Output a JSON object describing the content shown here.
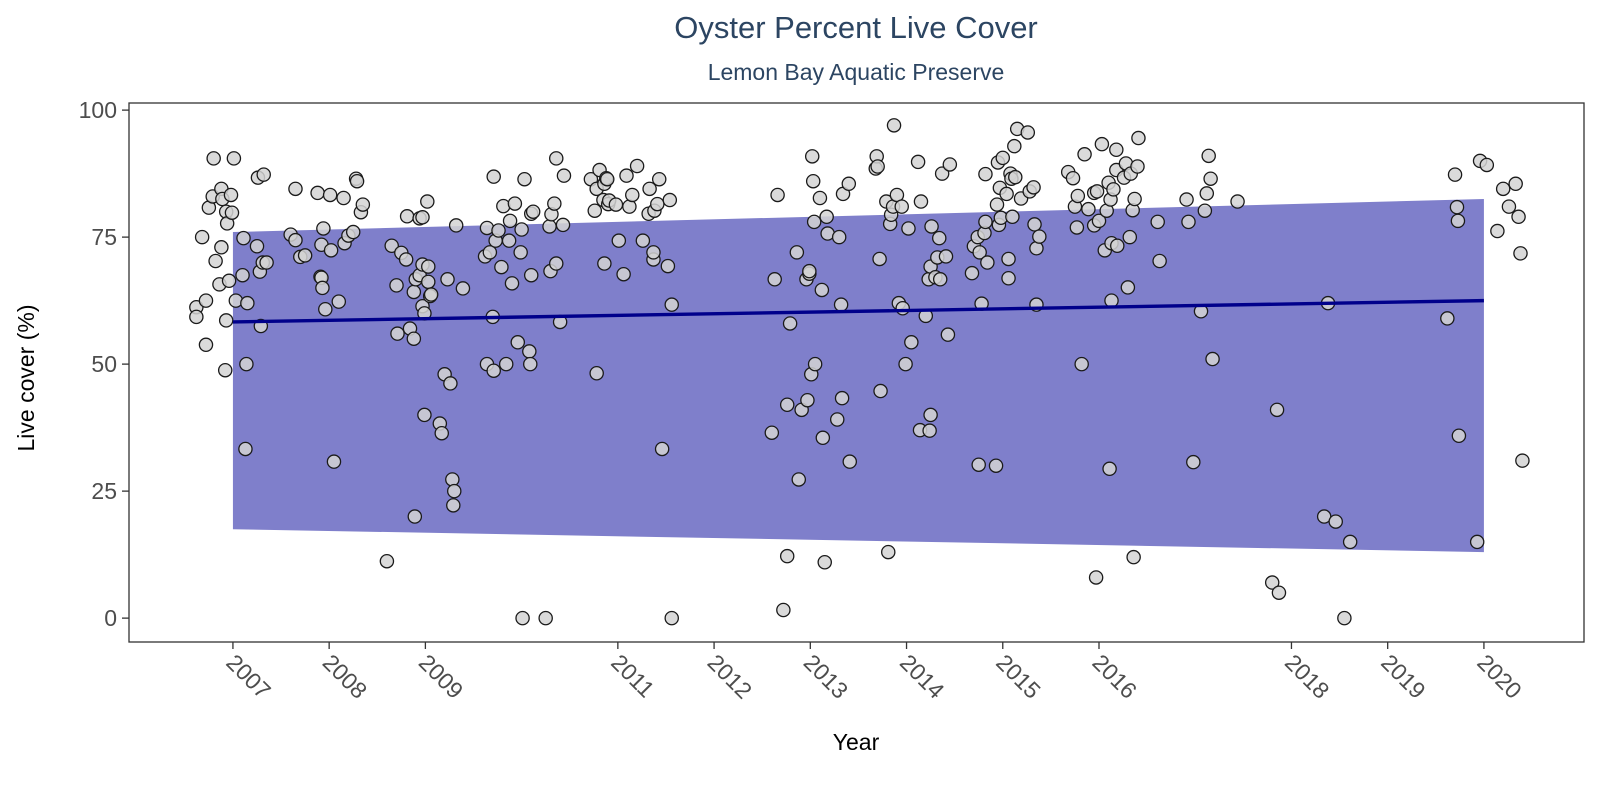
{
  "chart_data": {
    "type": "scatter",
    "title": "Oyster Percent Live Cover",
    "subtitle": "Lemon Bay Aquatic Preserve",
    "xlabel": "Year",
    "ylabel": "Live cover (%)",
    "xlim": [
      2005.92,
      2021.04
    ],
    "ylim": [
      -4.7,
      101.4
    ],
    "x_ticks": [
      2007,
      2008,
      2009,
      2011,
      2012,
      2013,
      2014,
      2015,
      2016,
      2018,
      2019,
      2020
    ],
    "y_ticks": [
      0,
      25,
      50,
      75,
      100
    ],
    "grid": false,
    "legend": "none",
    "colors": {
      "points_fill": "#d3d3d3",
      "points_stroke": "#1a1a1a",
      "trend_line": "#00008b",
      "ribbon": "#7f7fcb",
      "title": "#2c4562"
    },
    "trend": {
      "x": [
        2007,
        2020
      ],
      "y": [
        58.3,
        62.5
      ]
    },
    "ribbon": {
      "x": [
        2007,
        2020
      ],
      "lower": [
        17.5,
        13.0
      ],
      "upper": [
        76.0,
        82.5
      ]
    },
    "points": [
      [
        2006.62,
        61.2
      ],
      [
        2006.62,
        59.3
      ],
      [
        2006.68,
        75
      ],
      [
        2006.72,
        62.5
      ],
      [
        2006.72,
        53.8
      ],
      [
        2006.75,
        80.8
      ],
      [
        2006.79,
        83
      ],
      [
        2006.8,
        90.5
      ],
      [
        2006.82,
        70.3
      ],
      [
        2006.86,
        65.7
      ],
      [
        2006.88,
        73
      ],
      [
        2006.88,
        84.5
      ],
      [
        2006.89,
        82.5
      ],
      [
        2006.92,
        48.8
      ],
      [
        2006.93,
        58.6
      ],
      [
        2006.93,
        80
      ],
      [
        2006.94,
        77.7
      ],
      [
        2006.96,
        66.4
      ],
      [
        2006.98,
        83.3
      ],
      [
        2006.99,
        79.8
      ],
      [
        2007.01,
        90.5
      ],
      [
        2007.03,
        62.5
      ],
      [
        2007.1,
        67.5
      ],
      [
        2007.11,
        74.8
      ],
      [
        2007.13,
        33.3
      ],
      [
        2007.14,
        50
      ],
      [
        2007.15,
        62
      ],
      [
        2007.25,
        73.2
      ],
      [
        2007.26,
        86.7
      ],
      [
        2007.28,
        68.2
      ],
      [
        2007.29,
        57.5
      ],
      [
        2007.31,
        70
      ],
      [
        2007.32,
        87.3
      ],
      [
        2007.35,
        70
      ],
      [
        2007.6,
        75.5
      ],
      [
        2007.65,
        74.4
      ],
      [
        2007.65,
        84.5
      ],
      [
        2007.7,
        71.1
      ],
      [
        2007.75,
        71.4
      ],
      [
        2007.88,
        83.7
      ],
      [
        2007.91,
        67.2
      ],
      [
        2007.92,
        67
      ],
      [
        2007.92,
        73.5
      ],
      [
        2007.93,
        65
      ],
      [
        2007.94,
        76.7
      ],
      [
        2007.96,
        60.8
      ],
      [
        2008.01,
        83.3
      ],
      [
        2008.02,
        72.4
      ],
      [
        2008.05,
        30.8
      ],
      [
        2008.1,
        62.3
      ],
      [
        2008.15,
        82.7
      ],
      [
        2008.16,
        73.8
      ],
      [
        2008.2,
        75.3
      ],
      [
        2008.25,
        76
      ],
      [
        2008.28,
        86.5
      ],
      [
        2008.29,
        86
      ],
      [
        2008.33,
        79.9
      ],
      [
        2008.35,
        81.4
      ],
      [
        2008.6,
        11.2
      ],
      [
        2008.65,
        73.3
      ],
      [
        2008.7,
        65.5
      ],
      [
        2008.71,
        56
      ],
      [
        2008.75,
        71.9
      ],
      [
        2008.8,
        70.6
      ],
      [
        2008.81,
        79.1
      ],
      [
        2008.84,
        57
      ],
      [
        2008.88,
        64.2
      ],
      [
        2008.88,
        55
      ],
      [
        2008.89,
        20
      ],
      [
        2008.9,
        66.7
      ],
      [
        2008.94,
        67.5
      ],
      [
        2008.94,
        78.7
      ],
      [
        2008.97,
        78.9
      ],
      [
        2008.97,
        69.6
      ],
      [
        2008.97,
        61.4
      ],
      [
        2008.99,
        40
      ],
      [
        2008.99,
        60
      ],
      [
        2009.02,
        82
      ],
      [
        2009.03,
        69.2
      ],
      [
        2009.03,
        66.2
      ],
      [
        2009.05,
        63.4
      ],
      [
        2009.06,
        63.7
      ],
      [
        2009.15,
        38.3
      ],
      [
        2009.17,
        36.4
      ],
      [
        2009.2,
        48
      ],
      [
        2009.23,
        66.7
      ],
      [
        2009.26,
        46.2
      ],
      [
        2009.28,
        27.3
      ],
      [
        2009.29,
        22.2
      ],
      [
        2009.3,
        25
      ],
      [
        2009.32,
        77.3
      ],
      [
        2009.39,
        64.9
      ],
      [
        2009.62,
        71.2
      ],
      [
        2009.64,
        76.8
      ],
      [
        2009.64,
        50
      ],
      [
        2009.67,
        72
      ],
      [
        2009.7,
        59.3
      ],
      [
        2009.71,
        86.9
      ],
      [
        2009.71,
        48.7
      ],
      [
        2009.73,
        74.3
      ],
      [
        2009.76,
        76.3
      ],
      [
        2009.79,
        69.1
      ],
      [
        2009.81,
        81.1
      ],
      [
        2009.84,
        50
      ],
      [
        2009.87,
        74.3
      ],
      [
        2009.88,
        78.2
      ],
      [
        2009.9,
        65.9
      ],
      [
        2009.93,
        81.6
      ],
      [
        2009.96,
        54.3
      ],
      [
        2009.99,
        72
      ],
      [
        2010,
        76.5
      ],
      [
        2010.01,
        0
      ],
      [
        2010.03,
        86.4
      ],
      [
        2010.08,
        52.5
      ],
      [
        2010.09,
        50
      ],
      [
        2010.1,
        79.6
      ],
      [
        2010.1,
        67.5
      ],
      [
        2010.12,
        80
      ],
      [
        2010.25,
        0
      ],
      [
        2010.29,
        77.1
      ],
      [
        2010.3,
        68.3
      ],
      [
        2010.31,
        79.5
      ],
      [
        2010.34,
        81.6
      ],
      [
        2010.36,
        90.5
      ],
      [
        2010.36,
        69.8
      ],
      [
        2010.4,
        58.3
      ],
      [
        2010.43,
        77.4
      ],
      [
        2010.44,
        87.1
      ],
      [
        2010.72,
        86.4
      ],
      [
        2010.76,
        80.2
      ],
      [
        2010.78,
        48.2
      ],
      [
        2010.78,
        84.5
      ],
      [
        2010.81,
        88.2
      ],
      [
        2010.85,
        82.3
      ],
      [
        2010.86,
        69.8
      ],
      [
        2010.86,
        85.5
      ],
      [
        2010.88,
        86.6
      ],
      [
        2010.89,
        86.4
      ],
      [
        2010.9,
        81.5
      ],
      [
        2010.91,
        82.2
      ],
      [
        2010.98,
        81.4
      ],
      [
        2011.01,
        74.3
      ],
      [
        2011.06,
        67.7
      ],
      [
        2011.09,
        87.1
      ],
      [
        2011.12,
        81
      ],
      [
        2011.15,
        83.3
      ],
      [
        2011.2,
        89
      ],
      [
        2011.26,
        74.3
      ],
      [
        2011.32,
        79.6
      ],
      [
        2011.33,
        84.5
      ],
      [
        2011.37,
        70.6
      ],
      [
        2011.37,
        72
      ],
      [
        2011.38,
        80.2
      ],
      [
        2011.41,
        81.5
      ],
      [
        2011.43,
        86.4
      ],
      [
        2011.46,
        33.3
      ],
      [
        2011.52,
        69.3
      ],
      [
        2011.54,
        82.3
      ],
      [
        2011.56,
        61.7
      ],
      [
        2011.56,
        0
      ],
      [
        2012.6,
        36.5
      ],
      [
        2012.63,
        66.7
      ],
      [
        2012.66,
        83.3
      ],
      [
        2012.72,
        1.6
      ],
      [
        2012.76,
        42
      ],
      [
        2012.76,
        12.2
      ],
      [
        2012.79,
        58
      ],
      [
        2012.86,
        72
      ],
      [
        2012.88,
        27.3
      ],
      [
        2012.91,
        41
      ],
      [
        2012.96,
        66.7
      ],
      [
        2012.97,
        42.9
      ],
      [
        2012.99,
        67.8
      ],
      [
        2012.99,
        68.3
      ],
      [
        2013.01,
        48
      ],
      [
        2013.02,
        90.9
      ],
      [
        2013.03,
        86
      ],
      [
        2013.04,
        78
      ],
      [
        2013.05,
        50
      ],
      [
        2013.1,
        82.7
      ],
      [
        2013.12,
        64.6
      ],
      [
        2013.13,
        35.5
      ],
      [
        2013.15,
        11
      ],
      [
        2013.17,
        79
      ],
      [
        2013.18,
        75.7
      ],
      [
        2013.28,
        39.1
      ],
      [
        2013.3,
        75
      ],
      [
        2013.32,
        61.7
      ],
      [
        2013.33,
        43.3
      ],
      [
        2013.34,
        83.5
      ],
      [
        2013.4,
        85.5
      ],
      [
        2013.41,
        30.8
      ],
      [
        2013.68,
        88.5
      ],
      [
        2013.69,
        90.9
      ],
      [
        2013.7,
        88.9
      ],
      [
        2013.72,
        70.7
      ],
      [
        2013.73,
        44.7
      ],
      [
        2013.79,
        82
      ],
      [
        2013.81,
        13
      ],
      [
        2013.83,
        77.6
      ],
      [
        2013.84,
        79.4
      ],
      [
        2013.86,
        81
      ],
      [
        2013.87,
        97
      ],
      [
        2013.9,
        83.3
      ],
      [
        2013.92,
        62
      ],
      [
        2013.95,
        81
      ],
      [
        2013.96,
        61
      ],
      [
        2013.99,
        50
      ],
      [
        2014.02,
        76.7
      ],
      [
        2014.05,
        54.3
      ],
      [
        2014.12,
        89.8
      ],
      [
        2014.14,
        37
      ],
      [
        2014.15,
        82
      ],
      [
        2014.2,
        59.5
      ],
      [
        2014.23,
        66.7
      ],
      [
        2014.24,
        36.9
      ],
      [
        2014.25,
        69.2
      ],
      [
        2014.25,
        40
      ],
      [
        2014.26,
        77.1
      ],
      [
        2014.3,
        67.1
      ],
      [
        2014.32,
        71
      ],
      [
        2014.34,
        74.8
      ],
      [
        2014.35,
        66.7
      ],
      [
        2014.37,
        87.5
      ],
      [
        2014.41,
        71.2
      ],
      [
        2014.43,
        55.8
      ],
      [
        2014.45,
        89.3
      ],
      [
        2014.68,
        67.9
      ],
      [
        2014.7,
        73.2
      ],
      [
        2014.74,
        75
      ],
      [
        2014.75,
        30.2
      ],
      [
        2014.76,
        72
      ],
      [
        2014.78,
        61.9
      ],
      [
        2014.81,
        75.8
      ],
      [
        2014.82,
        78
      ],
      [
        2014.82,
        87.4
      ],
      [
        2014.84,
        70
      ],
      [
        2014.93,
        30
      ],
      [
        2014.94,
        81.4
      ],
      [
        2014.95,
        89.7
      ],
      [
        2014.96,
        77.4
      ],
      [
        2014.97,
        84.7
      ],
      [
        2014.98,
        78.8
      ],
      [
        2015,
        90.6
      ],
      [
        2015.04,
        83.5
      ],
      [
        2015.06,
        70.7
      ],
      [
        2015.06,
        66.9
      ],
      [
        2015.08,
        87.5
      ],
      [
        2015.09,
        86.5
      ],
      [
        2015.1,
        79
      ],
      [
        2015.12,
        92.9
      ],
      [
        2015.13,
        86.8
      ],
      [
        2015.15,
        96.3
      ],
      [
        2015.19,
        82.6
      ],
      [
        2015.26,
        95.6
      ],
      [
        2015.28,
        84
      ],
      [
        2015.32,
        84.8
      ],
      [
        2015.33,
        77.5
      ],
      [
        2015.35,
        72.8
      ],
      [
        2015.35,
        61.7
      ],
      [
        2015.38,
        75.1
      ],
      [
        2015.68,
        87.8
      ],
      [
        2015.73,
        86.6
      ],
      [
        2015.75,
        81
      ],
      [
        2015.77,
        76.9
      ],
      [
        2015.78,
        83.1
      ],
      [
        2015.82,
        50
      ],
      [
        2015.85,
        91.3
      ],
      [
        2015.89,
        80.5
      ],
      [
        2015.95,
        83.7
      ],
      [
        2015.95,
        77.3
      ],
      [
        2015.97,
        8
      ],
      [
        2015.98,
        84
      ],
      [
        2016,
        78.2
      ],
      [
        2016.03,
        93.3
      ],
      [
        2016.06,
        72.4
      ],
      [
        2016.08,
        80.2
      ],
      [
        2016.1,
        85.7
      ],
      [
        2016.11,
        29.4
      ],
      [
        2016.12,
        82.4
      ],
      [
        2016.13,
        62.5
      ],
      [
        2016.13,
        73.8
      ],
      [
        2016.15,
        84.4
      ],
      [
        2016.18,
        92.2
      ],
      [
        2016.18,
        88.2
      ],
      [
        2016.19,
        73.3
      ],
      [
        2016.26,
        86.7
      ],
      [
        2016.28,
        89.5
      ],
      [
        2016.3,
        65.1
      ],
      [
        2016.32,
        75
      ],
      [
        2016.33,
        87.5
      ],
      [
        2016.35,
        80.3
      ],
      [
        2016.36,
        12
      ],
      [
        2016.37,
        82.5
      ],
      [
        2016.4,
        88.9
      ],
      [
        2016.41,
        94.5
      ],
      [
        2016.61,
        78
      ],
      [
        2016.63,
        70.3
      ],
      [
        2016.91,
        82.4
      ],
      [
        2016.93,
        78
      ],
      [
        2016.98,
        30.7
      ],
      [
        2017.06,
        60.4
      ],
      [
        2017.1,
        80.2
      ],
      [
        2017.12,
        83.6
      ],
      [
        2017.14,
        91
      ],
      [
        2017.16,
        86.5
      ],
      [
        2017.18,
        51
      ],
      [
        2017.44,
        82
      ],
      [
        2017.8,
        7
      ],
      [
        2017.85,
        41
      ],
      [
        2017.87,
        5
      ],
      [
        2018.34,
        20
      ],
      [
        2018.38,
        62
      ],
      [
        2018.46,
        19
      ],
      [
        2018.55,
        0
      ],
      [
        2018.61,
        15
      ],
      [
        2019.62,
        59
      ],
      [
        2019.7,
        87.3
      ],
      [
        2019.72,
        80.9
      ],
      [
        2019.73,
        78.2
      ],
      [
        2019.74,
        35.9
      ],
      [
        2019.93,
        15
      ],
      [
        2019.96,
        90
      ],
      [
        2020.03,
        89.2
      ],
      [
        2020.14,
        76.2
      ],
      [
        2020.2,
        84.5
      ],
      [
        2020.26,
        81
      ],
      [
        2020.33,
        85.5
      ],
      [
        2020.36,
        79
      ],
      [
        2020.38,
        71.8
      ],
      [
        2020.4,
        31
      ]
    ]
  }
}
